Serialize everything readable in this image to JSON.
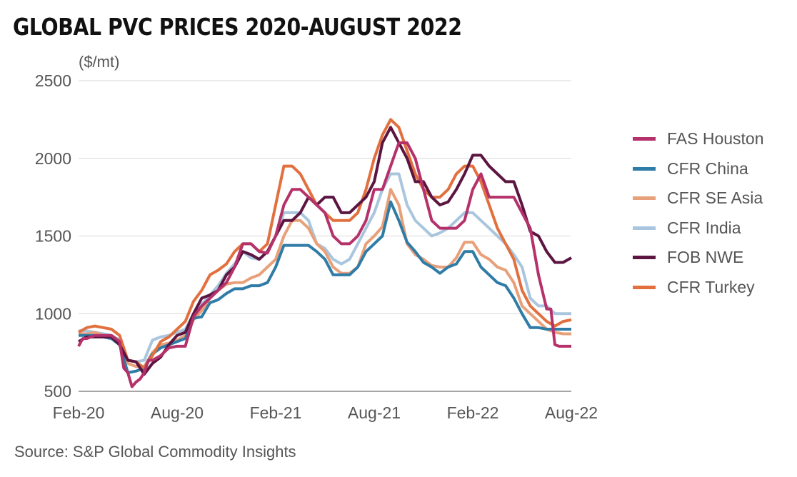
{
  "chart_data": {
    "type": "line",
    "title": "GLOBAL PVC PRICES 2020-AUGUST 2022",
    "ylabel": "($/mt)",
    "xlabel": "",
    "source": "Source: S&P Global Commodity Insights",
    "ylim": [
      500,
      2500
    ],
    "yticks": [
      500,
      1000,
      1500,
      2000,
      2500
    ],
    "xlim": [
      0,
      30
    ],
    "xticks": [
      {
        "value": 0,
        "label": "Feb-20"
      },
      {
        "value": 6,
        "label": "Aug-20"
      },
      {
        "value": 12,
        "label": "Feb-21"
      },
      {
        "value": 18,
        "label": "Aug-21"
      },
      {
        "value": 24,
        "label": "Feb-22"
      },
      {
        "value": 30,
        "label": "Aug-22"
      }
    ],
    "x_unit": "months since Feb-2020",
    "grid": "horizontal",
    "legend_position": "right",
    "series": [
      {
        "name": "FAS Houston",
        "color": "#b5316a",
        "x": [
          0,
          0.25,
          0.5,
          1,
          1.5,
          2,
          2.5,
          2.75,
          3,
          3.25,
          3.5,
          3.75,
          4,
          4.25,
          4.5,
          5,
          5.5,
          6,
          6.5,
          7,
          7.5,
          8,
          8.5,
          9,
          9.5,
          10,
          10.5,
          11,
          11.5,
          12,
          12.5,
          13,
          13.5,
          14,
          14.5,
          15,
          15.5,
          16,
          16.5,
          17,
          17.5,
          18,
          18.5,
          19,
          19.5,
          20,
          20.5,
          21,
          21.5,
          22,
          22.5,
          23,
          23.5,
          24,
          24.5,
          25,
          25.5,
          26,
          26.5,
          27,
          27.5,
          28,
          28.5,
          28.75,
          29,
          29.25,
          29.5,
          30
        ],
        "values": [
          790,
          840,
          840,
          860,
          860,
          860,
          820,
          650,
          620,
          530,
          560,
          580,
          620,
          700,
          700,
          730,
          780,
          790,
          790,
          980,
          1050,
          1100,
          1150,
          1200,
          1300,
          1450,
          1450,
          1400,
          1390,
          1500,
          1700,
          1800,
          1800,
          1750,
          1700,
          1650,
          1500,
          1450,
          1450,
          1500,
          1600,
          1800,
          1800,
          1950,
          2100,
          2100,
          2000,
          1800,
          1600,
          1550,
          1550,
          1550,
          1600,
          1800,
          1900,
          1750,
          1750,
          1750,
          1750,
          1650,
          1550,
          1250,
          1030,
          1030,
          800,
          790,
          790,
          790
        ]
      },
      {
        "name": "CFR China",
        "color": "#2f7ca7",
        "x": [
          0,
          0.5,
          1,
          1.5,
          2,
          2.5,
          3,
          3.5,
          4,
          4.5,
          5,
          5.5,
          6,
          6.5,
          7,
          7.5,
          8,
          8.5,
          9,
          9.5,
          10,
          10.5,
          11,
          11.5,
          12,
          12.5,
          13,
          13.5,
          14,
          14.5,
          15,
          15.5,
          16,
          16.5,
          17,
          17.5,
          18,
          18.5,
          19,
          19.5,
          20,
          20.5,
          21,
          21.5,
          22,
          22.5,
          23,
          23.5,
          24,
          24.5,
          25,
          25.5,
          26,
          26.5,
          27,
          27.5,
          28,
          28.5,
          29,
          29.5,
          30
        ],
        "values": [
          860,
          860,
          860,
          850,
          840,
          800,
          620,
          630,
          650,
          740,
          780,
          800,
          820,
          840,
          970,
          980,
          1070,
          1090,
          1130,
          1160,
          1160,
          1180,
          1180,
          1200,
          1300,
          1440,
          1440,
          1440,
          1440,
          1400,
          1350,
          1250,
          1250,
          1250,
          1300,
          1400,
          1450,
          1500,
          1720,
          1600,
          1460,
          1400,
          1330,
          1300,
          1260,
          1300,
          1320,
          1400,
          1400,
          1300,
          1250,
          1200,
          1180,
          1100,
          1000,
          910,
          910,
          900,
          900,
          900,
          900
        ]
      },
      {
        "name": "CFR SE Asia",
        "color": "#e8a07a",
        "x": [
          0,
          0.5,
          1,
          1.5,
          2,
          2.5,
          3,
          3.5,
          4,
          4.5,
          5,
          5.5,
          6,
          6.5,
          7,
          7.5,
          8,
          8.5,
          9,
          9.5,
          10,
          10.5,
          11,
          11.5,
          12,
          12.5,
          13,
          13.5,
          14,
          14.5,
          15,
          15.5,
          16,
          16.5,
          17,
          17.5,
          18,
          18.5,
          19,
          19.5,
          20,
          20.5,
          21,
          21.5,
          22,
          22.5,
          23,
          23.5,
          24,
          24.5,
          25,
          25.5,
          26,
          26.5,
          27,
          27.5,
          28,
          28.5,
          29,
          29.5,
          30
        ],
        "values": [
          870,
          870,
          880,
          860,
          850,
          820,
          680,
          660,
          660,
          750,
          800,
          810,
          830,
          860,
          960,
          1020,
          1100,
          1150,
          1190,
          1200,
          1200,
          1230,
          1250,
          1300,
          1350,
          1500,
          1600,
          1600,
          1550,
          1450,
          1400,
          1300,
          1260,
          1260,
          1300,
          1450,
          1500,
          1560,
          1800,
          1700,
          1450,
          1380,
          1350,
          1310,
          1300,
          1300,
          1360,
          1460,
          1460,
          1380,
          1350,
          1300,
          1280,
          1200,
          1050,
          1000,
          950,
          900,
          880,
          870,
          870
        ]
      },
      {
        "name": "CFR India",
        "color": "#a9c6de",
        "x": [
          0,
          0.5,
          1,
          1.5,
          2,
          2.5,
          3,
          3.5,
          4,
          4.5,
          5,
          5.5,
          6,
          6.5,
          7,
          7.5,
          8,
          8.5,
          9,
          9.5,
          10,
          10.5,
          11,
          11.5,
          12,
          12.5,
          13,
          13.5,
          14,
          14.5,
          15,
          15.5,
          16,
          16.5,
          17,
          17.5,
          18,
          18.5,
          19,
          19.5,
          20,
          20.5,
          21,
          21.5,
          22,
          22.5,
          23,
          23.5,
          24,
          24.5,
          25,
          25.5,
          26,
          26.5,
          27,
          27.5,
          28,
          28.5,
          29,
          29.5,
          30
        ],
        "values": [
          890,
          890,
          880,
          870,
          860,
          830,
          700,
          690,
          700,
          830,
          850,
          860,
          880,
          900,
          1000,
          1060,
          1120,
          1180,
          1260,
          1320,
          1400,
          1360,
          1350,
          1400,
          1500,
          1650,
          1650,
          1650,
          1600,
          1450,
          1420,
          1350,
          1320,
          1350,
          1450,
          1550,
          1650,
          1800,
          1900,
          1900,
          1700,
          1600,
          1550,
          1500,
          1520,
          1550,
          1600,
          1650,
          1650,
          1600,
          1550,
          1500,
          1450,
          1380,
          1300,
          1100,
          1050,
          1050,
          1000,
          1000,
          1000
        ]
      },
      {
        "name": "FOB NWE",
        "color": "#5b1540",
        "x": [
          0,
          0.5,
          1,
          1.5,
          2,
          2.5,
          3,
          3.5,
          4,
          4.5,
          5,
          5.5,
          6,
          6.5,
          7,
          7.5,
          8,
          8.5,
          9,
          9.5,
          10,
          10.5,
          11,
          11.5,
          12,
          12.5,
          13,
          13.5,
          14,
          14.5,
          15,
          15.5,
          16,
          16.5,
          17,
          17.5,
          18,
          18.5,
          19,
          19.5,
          20,
          20.5,
          21,
          21.5,
          22,
          22.5,
          23,
          23.5,
          24,
          24.5,
          25,
          25.5,
          26,
          26.5,
          27,
          27.5,
          28,
          28.5,
          29,
          29.5,
          30
        ],
        "values": [
          820,
          850,
          850,
          850,
          850,
          800,
          700,
          690,
          610,
          680,
          720,
          800,
          860,
          880,
          1000,
          1100,
          1120,
          1150,
          1250,
          1300,
          1400,
          1380,
          1350,
          1400,
          1500,
          1600,
          1600,
          1650,
          1750,
          1700,
          1750,
          1750,
          1650,
          1650,
          1700,
          1750,
          1850,
          2100,
          2200,
          2100,
          2000,
          1850,
          1850,
          1750,
          1700,
          1720,
          1800,
          1900,
          2020,
          2020,
          1950,
          1900,
          1850,
          1850,
          1700,
          1530,
          1500,
          1400,
          1330,
          1330,
          1360
        ]
      },
      {
        "name": "CFR Turkey",
        "color": "#e2703f",
        "x": [
          0,
          0.5,
          1,
          1.5,
          2,
          2.5,
          3,
          3.5,
          4,
          4.5,
          5,
          5.5,
          6,
          6.5,
          7,
          7.5,
          8,
          8.5,
          9,
          9.5,
          10,
          10.5,
          11,
          11.5,
          12,
          12.5,
          13,
          13.5,
          14,
          14.5,
          15,
          15.5,
          16,
          16.5,
          17,
          17.5,
          18,
          18.5,
          19,
          19.5,
          20,
          20.5,
          21,
          21.5,
          22,
          22.5,
          23,
          23.5,
          24,
          24.5,
          25,
          25.5,
          26,
          26.5,
          27,
          27.5,
          28,
          28.5,
          29,
          29.5,
          30
        ],
        "values": [
          880,
          910,
          920,
          910,
          900,
          860,
          700,
          690,
          650,
          730,
          820,
          850,
          900,
          950,
          1080,
          1150,
          1250,
          1280,
          1320,
          1400,
          1450,
          1450,
          1400,
          1450,
          1700,
          1950,
          1950,
          1900,
          1800,
          1700,
          1650,
          1600,
          1600,
          1600,
          1650,
          1800,
          2000,
          2150,
          2250,
          2200,
          2050,
          1900,
          1800,
          1750,
          1750,
          1800,
          1900,
          1950,
          1950,
          1850,
          1700,
          1550,
          1450,
          1350,
          1150,
          1050,
          1000,
          950,
          920,
          950,
          960
        ]
      }
    ]
  }
}
